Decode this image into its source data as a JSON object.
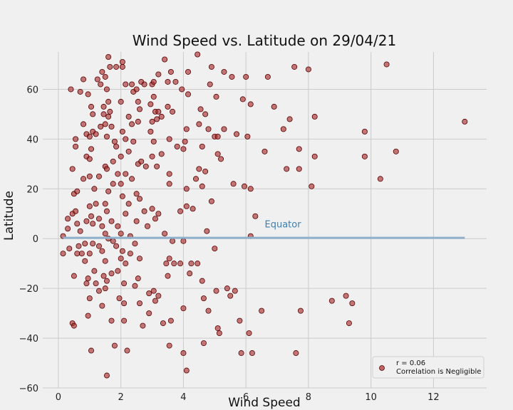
{
  "chart_data": {
    "type": "scatter",
    "title": "Wind Speed vs. Latitude on 29/04/21",
    "xlabel": "Wind Speed",
    "ylabel": "Latitude",
    "xlim": [
      -0.5,
      13.7
    ],
    "ylim": [
      -60,
      75
    ],
    "xticks": [
      0,
      2,
      4,
      6,
      8,
      10,
      12
    ],
    "yticks": [
      -60,
      -40,
      -20,
      0,
      20,
      40,
      60
    ],
    "grid": true,
    "colors": {
      "point_fill": "#a52a2a",
      "point_edge": "#5a0000",
      "regression_line": "#8fb1cc",
      "annotation": "#3d7fae",
      "background": "#f0f0f0",
      "grid": "#cbcbcb"
    },
    "regression": {
      "x0": 0.15,
      "y0": 0.3,
      "x1": 13.0,
      "y1": 0.3
    },
    "annotation": {
      "text": "Equator",
      "x": 6.6,
      "y": 4.5
    },
    "legend": {
      "location": "lower-right",
      "lines": [
        "r = 0.06",
        "Correlation is Negligible"
      ]
    },
    "points": [
      [
        0.15,
        -6
      ],
      [
        0.15,
        1
      ],
      [
        0.3,
        4
      ],
      [
        0.3,
        8
      ],
      [
        0.35,
        -4
      ],
      [
        0.4,
        60
      ],
      [
        0.45,
        28
      ],
      [
        0.45,
        10
      ],
      [
        0.45,
        -34
      ],
      [
        0.5,
        -35
      ],
      [
        0.5,
        -15
      ],
      [
        0.5,
        18
      ],
      [
        0.55,
        40
      ],
      [
        0.55,
        37
      ],
      [
        0.55,
        11
      ],
      [
        0.6,
        19
      ],
      [
        0.6,
        6
      ],
      [
        0.6,
        -6
      ],
      [
        0.65,
        -3
      ],
      [
        0.7,
        59
      ],
      [
        0.7,
        3
      ],
      [
        0.75,
        -6
      ],
      [
        0.8,
        64
      ],
      [
        0.8,
        46
      ],
      [
        0.8,
        24
      ],
      [
        0.85,
        -2
      ],
      [
        0.85,
        -9
      ],
      [
        0.9,
        42
      ],
      [
        0.9,
        33
      ],
      [
        0.9,
        7
      ],
      [
        0.9,
        -18
      ],
      [
        0.95,
        58
      ],
      [
        0.95,
        -16
      ],
      [
        0.95,
        -31
      ],
      [
        1.0,
        41
      ],
      [
        1.0,
        32
      ],
      [
        1.0,
        25
      ],
      [
        1.0,
        13
      ],
      [
        1.0,
        -24
      ],
      [
        1.0,
        -6
      ],
      [
        1.05,
        53
      ],
      [
        1.05,
        36
      ],
      [
        1.05,
        9
      ],
      [
        1.05,
        -45
      ],
      [
        1.1,
        50
      ],
      [
        1.1,
        43
      ],
      [
        1.1,
        6
      ],
      [
        1.1,
        -2
      ],
      [
        1.15,
        20
      ],
      [
        1.15,
        -13
      ],
      [
        1.2,
        42
      ],
      [
        1.2,
        14
      ],
      [
        1.2,
        -18
      ],
      [
        1.25,
        64
      ],
      [
        1.3,
        25
      ],
      [
        1.3,
        8
      ],
      [
        1.3,
        -3
      ],
      [
        1.3,
        -21
      ],
      [
        1.35,
        45
      ],
      [
        1.35,
        62
      ],
      [
        1.4,
        67
      ],
      [
        1.4,
        5
      ],
      [
        1.4,
        -5
      ],
      [
        1.4,
        -27
      ],
      [
        1.45,
        53
      ],
      [
        1.45,
        50
      ],
      [
        1.45,
        -15
      ],
      [
        1.5,
        65
      ],
      [
        1.5,
        46
      ],
      [
        1.5,
        29
      ],
      [
        1.5,
        14
      ],
      [
        1.5,
        2
      ],
      [
        1.5,
        -9
      ],
      [
        1.5,
        -20
      ],
      [
        1.55,
        60
      ],
      [
        1.55,
        41
      ],
      [
        1.55,
        28
      ],
      [
        1.55,
        11
      ],
      [
        1.55,
        -17
      ],
      [
        1.55,
        -55
      ],
      [
        1.6,
        73
      ],
      [
        1.6,
        55
      ],
      [
        1.6,
        49
      ],
      [
        1.6,
        19
      ],
      [
        1.6,
        0
      ],
      [
        1.65,
        69
      ],
      [
        1.65,
        51
      ],
      [
        1.7,
        45
      ],
      [
        1.7,
        7
      ],
      [
        1.7,
        -14
      ],
      [
        1.7,
        -33
      ],
      [
        1.75,
        31
      ],
      [
        1.75,
        22
      ],
      [
        1.75,
        -1
      ],
      [
        1.8,
        -43
      ],
      [
        1.8,
        39
      ],
      [
        1.85,
        69
      ],
      [
        1.85,
        37
      ],
      [
        1.85,
        -3
      ],
      [
        1.9,
        26
      ],
      [
        1.9,
        5
      ],
      [
        1.9,
        -13
      ],
      [
        1.95,
        -24
      ],
      [
        2.0,
        55
      ],
      [
        2.0,
        33
      ],
      [
        2.0,
        22
      ],
      [
        2.0,
        2
      ],
      [
        2.0,
        -8
      ],
      [
        2.05,
        71
      ],
      [
        2.05,
        69
      ],
      [
        2.05,
        43
      ],
      [
        2.05,
        17
      ],
      [
        2.05,
        -5
      ],
      [
        2.1,
        -18
      ],
      [
        2.1,
        -26
      ],
      [
        2.1,
        -33
      ],
      [
        2.15,
        62
      ],
      [
        2.15,
        40
      ],
      [
        2.15,
        26
      ],
      [
        2.15,
        10
      ],
      [
        2.15,
        -10
      ],
      [
        2.2,
        -45
      ],
      [
        2.25,
        49
      ],
      [
        2.25,
        35
      ],
      [
        2.25,
        14
      ],
      [
        2.3,
        1
      ],
      [
        2.3,
        -6
      ],
      [
        2.35,
        62
      ],
      [
        2.35,
        46
      ],
      [
        2.35,
        24
      ],
      [
        2.4,
        59
      ],
      [
        2.4,
        39
      ],
      [
        2.45,
        -2
      ],
      [
        2.45,
        -19
      ],
      [
        2.5,
        60
      ],
      [
        2.5,
        18
      ],
      [
        2.5,
        7
      ],
      [
        2.55,
        55
      ],
      [
        2.55,
        47
      ],
      [
        2.55,
        30
      ],
      [
        2.55,
        -16
      ],
      [
        2.6,
        52
      ],
      [
        2.6,
        16
      ],
      [
        2.6,
        -8
      ],
      [
        2.6,
        -26
      ],
      [
        2.65,
        63
      ],
      [
        2.65,
        31
      ],
      [
        2.7,
        -35
      ],
      [
        2.75,
        62
      ],
      [
        2.75,
        11
      ],
      [
        2.8,
        29
      ],
      [
        2.85,
        5
      ],
      [
        2.9,
        -22
      ],
      [
        2.9,
        -30
      ],
      [
        2.95,
        54
      ],
      [
        2.95,
        43
      ],
      [
        3.0,
        62
      ],
      [
        3.0,
        47
      ],
      [
        3.0,
        33
      ],
      [
        3.0,
        12
      ],
      [
        3.05,
        63
      ],
      [
        3.05,
        57
      ],
      [
        3.05,
        39
      ],
      [
        3.05,
        -21
      ],
      [
        3.1,
        51
      ],
      [
        3.1,
        8
      ],
      [
        3.1,
        -25
      ],
      [
        3.15,
        48
      ],
      [
        3.15,
        29
      ],
      [
        3.2,
        66
      ],
      [
        3.2,
        51
      ],
      [
        3.2,
        10
      ],
      [
        3.2,
        -23
      ],
      [
        3.3,
        49
      ],
      [
        3.3,
        34
      ],
      [
        3.35,
        -34
      ],
      [
        3.4,
        72
      ],
      [
        3.4,
        2
      ],
      [
        3.45,
        -10
      ],
      [
        3.5,
        63
      ],
      [
        3.5,
        53
      ],
      [
        3.5,
        -15
      ],
      [
        3.55,
        40
      ],
      [
        3.55,
        26
      ],
      [
        3.55,
        22
      ],
      [
        3.55,
        -8
      ],
      [
        3.55,
        -43
      ],
      [
        3.6,
        67
      ],
      [
        3.6,
        -33
      ],
      [
        3.65,
        51
      ],
      [
        3.65,
        -1
      ],
      [
        3.7,
        -10
      ],
      [
        3.75,
        63
      ],
      [
        3.8,
        37
      ],
      [
        3.9,
        11
      ],
      [
        3.9,
        -10
      ],
      [
        3.95,
        60
      ],
      [
        4.0,
        36
      ],
      [
        4.0,
        -1
      ],
      [
        4.0,
        -28
      ],
      [
        4.0,
        -46
      ],
      [
        4.05,
        39
      ],
      [
        4.1,
        -53
      ],
      [
        4.1,
        44
      ],
      [
        4.1,
        20
      ],
      [
        4.1,
        13
      ],
      [
        4.15,
        67
      ],
      [
        4.15,
        58
      ],
      [
        4.2,
        -14
      ],
      [
        4.25,
        -10
      ],
      [
        4.3,
        12
      ],
      [
        4.4,
        24
      ],
      [
        4.45,
        74
      ],
      [
        4.45,
        -10
      ],
      [
        4.5,
        46
      ],
      [
        4.5,
        28
      ],
      [
        4.55,
        52
      ],
      [
        4.6,
        37
      ],
      [
        4.6,
        21
      ],
      [
        4.6,
        -17
      ],
      [
        4.65,
        -42
      ],
      [
        4.65,
        -24
      ],
      [
        4.7,
        50
      ],
      [
        4.7,
        27
      ],
      [
        4.75,
        3
      ],
      [
        4.8,
        44
      ],
      [
        4.8,
        -29
      ],
      [
        4.85,
        62
      ],
      [
        4.9,
        69
      ],
      [
        4.9,
        15
      ],
      [
        5.0,
        41
      ],
      [
        5.0,
        -4
      ],
      [
        5.05,
        57
      ],
      [
        5.05,
        -21
      ],
      [
        5.1,
        41
      ],
      [
        5.1,
        34
      ],
      [
        5.1,
        -36
      ],
      [
        5.15,
        -38
      ],
      [
        5.2,
        32
      ],
      [
        5.3,
        44
      ],
      [
        5.3,
        67
      ],
      [
        5.4,
        -20
      ],
      [
        5.5,
        -23
      ],
      [
        5.55,
        65
      ],
      [
        5.6,
        22
      ],
      [
        5.65,
        -21
      ],
      [
        5.7,
        42
      ],
      [
        5.8,
        -33
      ],
      [
        5.85,
        -46
      ],
      [
        5.9,
        56
      ],
      [
        5.95,
        21
      ],
      [
        6.0,
        65
      ],
      [
        6.05,
        41
      ],
      [
        6.1,
        -38
      ],
      [
        6.15,
        1
      ],
      [
        6.15,
        54
      ],
      [
        6.15,
        20
      ],
      [
        6.2,
        -46
      ],
      [
        6.3,
        9
      ],
      [
        6.5,
        -29
      ],
      [
        6.6,
        35
      ],
      [
        6.7,
        65
      ],
      [
        6.9,
        53
      ],
      [
        7.2,
        44
      ],
      [
        7.3,
        28
      ],
      [
        7.4,
        48
      ],
      [
        7.55,
        69
      ],
      [
        7.6,
        -46
      ],
      [
        7.7,
        36
      ],
      [
        7.7,
        28
      ],
      [
        7.75,
        -29
      ],
      [
        8.0,
        68
      ],
      [
        8.1,
        21
      ],
      [
        8.2,
        33
      ],
      [
        8.2,
        49
      ],
      [
        8.75,
        -25
      ],
      [
        9.2,
        -23
      ],
      [
        9.3,
        -34
      ],
      [
        9.4,
        -26
      ],
      [
        9.8,
        43
      ],
      [
        9.8,
        33
      ],
      [
        10.3,
        24
      ],
      [
        10.5,
        70
      ],
      [
        10.8,
        35
      ],
      [
        13.0,
        47
      ]
    ]
  }
}
